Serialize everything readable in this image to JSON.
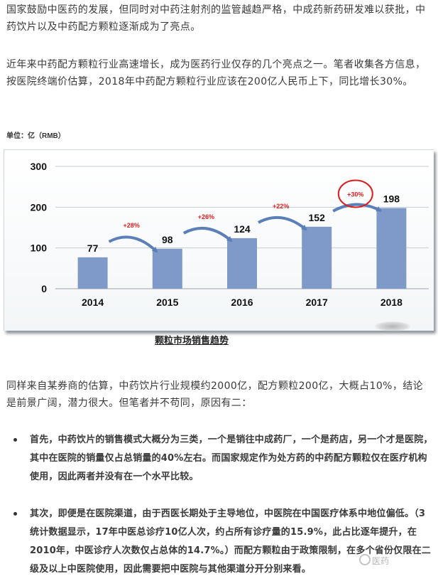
{
  "paragraphs": {
    "p1": "国家鼓励中医药的发展，但同时对中药注射剂的监管越趋严格，中成药新药研发难以获批，中药饮片以及中药配方颗粒逐渐成为了亮点。",
    "p2": "近年来中药配方颗粒行业高速增长，成为医药行业仅存的几个亮点之一。笔者收集各方信息，按医院终端价估算，2018年中药配方颗粒行业应该在200亿人民币上下，同比增长30%。",
    "p3": "同样来自某券商的估算，中药饮片行业规模约2000亿，配方颗粒200亿，大概占10%，结论是前景广阔，潜力很大。但笔者并不苟同，原因有二："
  },
  "chart_unit": "单位：亿（RMB）",
  "chart_caption": "颗粒市场销售趋势",
  "chart_data": {
    "type": "bar",
    "categories": [
      "2014",
      "2015",
      "2016",
      "2017",
      "2018"
    ],
    "values": [
      77,
      98,
      124,
      152,
      198
    ],
    "growth_labels": [
      "+28%",
      "+26%",
      "+22%",
      "+30%"
    ],
    "highlighted_growth_index": 3,
    "yticks": [
      "300",
      "200",
      "100",
      "0"
    ],
    "ylim": [
      0,
      300
    ],
    "grid": true,
    "bar_color": "#7f9ac9",
    "arrow_color": "#5b7fb8",
    "growth_color": "#e02020",
    "highlight_circle_color": "#d81e1e",
    "title": "",
    "xlabel": "",
    "ylabel": ""
  },
  "bullets": [
    "首先，中药饮片的销售模式大概分为三类，一个是销往中成药厂，一个是药店，另一个才是医院，其中在医院的销量仅占总销量的40%左右。而国家规定作为处方药的中药配方颗粒仅在医疗机构使用，因此两者并没有在一个水平比较。",
    "其次，即便是在医院渠道，由于西医长期处于主导地位，中医院在中国医疗体系中地位偏低。（3统计数据显示，17年中医总诊疗10亿人次，约占所有诊疗量的15.9%，此占比逐年提升，在2010年，中医诊疗人次数仅占总体的14.7%。）而配方颗粒由于政策限制，在多个省份仅限在二级及以上中医院使用，因此需要把中医院与其他渠道分开分别来看。"
  ],
  "watermark": "医药"
}
